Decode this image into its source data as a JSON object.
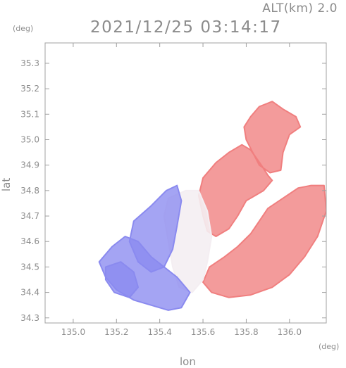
{
  "header": {
    "altitude_label": "ALT(km)",
    "altitude_value": "2.0",
    "datetime": "2021/12/25 03:14:17"
  },
  "chart_data": {
    "type": "heatmap",
    "title": "2021/12/25 03:14:17",
    "xlabel": "lon",
    "ylabel": "lat",
    "x_unit": "(deg)",
    "y_unit": "(deg)",
    "xlim": [
      134.87,
      136.17
    ],
    "ylim": [
      34.28,
      35.38
    ],
    "x_ticks": [
      "135.0",
      "135.2",
      "135.4",
      "135.6",
      "135.8",
      "136.0"
    ],
    "y_ticks": [
      "35.3",
      "35.2",
      "35.1",
      "35.0",
      "34.9",
      "34.8",
      "34.7",
      "34.6",
      "34.5",
      "34.4",
      "34.3"
    ],
    "x_tick_values": [
      135.0,
      135.2,
      135.4,
      135.6,
      135.8,
      136.0
    ],
    "y_tick_values": [
      35.3,
      35.2,
      35.1,
      35.0,
      34.9,
      34.8,
      34.7,
      34.6,
      34.5,
      34.4,
      34.3
    ],
    "colors": {
      "positive": "#f07f7f",
      "negative": "#8a8aef",
      "neutral": "#f4eef2",
      "axis": "#a0a0a0"
    },
    "regions": [
      {
        "name": "red-north-cluster",
        "sign": "positive",
        "points": [
          [
            135.82,
            35.09
          ],
          [
            135.86,
            35.13
          ],
          [
            135.92,
            35.15
          ],
          [
            135.97,
            35.12
          ],
          [
            136.03,
            35.09
          ],
          [
            136.05,
            35.05
          ],
          [
            136.0,
            35.02
          ],
          [
            135.97,
            34.95
          ],
          [
            135.96,
            34.88
          ],
          [
            135.91,
            34.87
          ],
          [
            135.86,
            34.9
          ],
          [
            135.83,
            34.95
          ],
          [
            135.8,
            35.0
          ],
          [
            135.79,
            35.05
          ]
        ]
      },
      {
        "name": "red-northeast-band",
        "sign": "positive",
        "points": [
          [
            135.66,
            34.91
          ],
          [
            135.72,
            34.95
          ],
          [
            135.78,
            34.98
          ],
          [
            135.82,
            34.96
          ],
          [
            135.87,
            34.9
          ],
          [
            135.9,
            34.86
          ],
          [
            135.92,
            34.84
          ],
          [
            135.88,
            34.8
          ],
          [
            135.84,
            34.78
          ],
          [
            135.8,
            34.76
          ],
          [
            135.76,
            34.7
          ],
          [
            135.72,
            34.65
          ],
          [
            135.66,
            34.62
          ],
          [
            135.62,
            34.64
          ],
          [
            135.6,
            34.7
          ],
          [
            135.58,
            34.78
          ],
          [
            135.6,
            34.85
          ]
        ]
      },
      {
        "name": "red-east-arc",
        "sign": "positive",
        "points": [
          [
            135.9,
            34.73
          ],
          [
            135.97,
            34.77
          ],
          [
            136.04,
            34.81
          ],
          [
            136.1,
            34.82
          ],
          [
            136.16,
            34.82
          ],
          [
            136.17,
            34.72
          ],
          [
            136.13,
            34.62
          ],
          [
            136.07,
            34.54
          ],
          [
            136.0,
            34.47
          ],
          [
            135.92,
            34.42
          ],
          [
            135.82,
            34.39
          ],
          [
            135.72,
            34.38
          ],
          [
            135.64,
            34.4
          ],
          [
            135.6,
            34.44
          ],
          [
            135.63,
            34.5
          ],
          [
            135.7,
            34.54
          ],
          [
            135.76,
            34.58
          ],
          [
            135.82,
            34.63
          ],
          [
            135.86,
            34.68
          ]
        ]
      },
      {
        "name": "neutral-center",
        "sign": "neutral",
        "points": [
          [
            135.44,
            34.77
          ],
          [
            135.52,
            34.8
          ],
          [
            135.58,
            34.8
          ],
          [
            135.62,
            34.72
          ],
          [
            135.64,
            34.62
          ],
          [
            135.62,
            34.52
          ],
          [
            135.6,
            34.45
          ],
          [
            135.55,
            34.4
          ],
          [
            135.49,
            34.42
          ],
          [
            135.46,
            34.5
          ],
          [
            135.44,
            34.6
          ],
          [
            135.42,
            34.7
          ]
        ]
      },
      {
        "name": "blue-northwest",
        "sign": "negative",
        "points": [
          [
            135.36,
            34.74
          ],
          [
            135.43,
            34.8
          ],
          [
            135.48,
            34.82
          ],
          [
            135.5,
            34.76
          ],
          [
            135.48,
            34.66
          ],
          [
            135.46,
            34.57
          ],
          [
            135.42,
            34.5
          ],
          [
            135.36,
            34.48
          ],
          [
            135.3,
            34.52
          ],
          [
            135.26,
            34.6
          ],
          [
            135.28,
            34.68
          ]
        ]
      },
      {
        "name": "blue-southwest",
        "sign": "negative",
        "points": [
          [
            135.12,
            34.52
          ],
          [
            135.18,
            34.58
          ],
          [
            135.24,
            34.62
          ],
          [
            135.3,
            34.6
          ],
          [
            135.36,
            34.54
          ],
          [
            135.42,
            34.5
          ],
          [
            135.48,
            34.46
          ],
          [
            135.54,
            34.4
          ],
          [
            135.5,
            34.34
          ],
          [
            135.44,
            34.33
          ],
          [
            135.36,
            34.35
          ],
          [
            135.28,
            34.37
          ],
          [
            135.2,
            34.41
          ],
          [
            135.15,
            34.46
          ]
        ]
      },
      {
        "name": "blue-core",
        "sign": "negative",
        "points": [
          [
            135.15,
            34.5
          ],
          [
            135.22,
            34.52
          ],
          [
            135.28,
            34.48
          ],
          [
            135.3,
            34.42
          ],
          [
            135.26,
            34.38
          ],
          [
            135.19,
            34.4
          ],
          [
            135.15,
            34.45
          ]
        ]
      }
    ]
  }
}
